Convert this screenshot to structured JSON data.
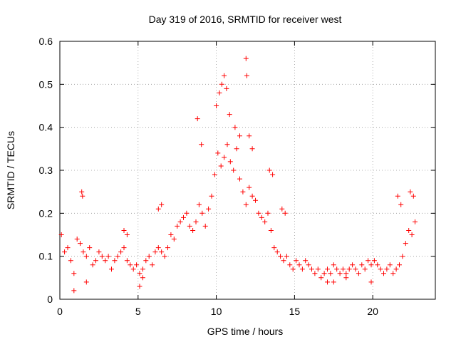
{
  "chart_data": {
    "type": "scatter",
    "title": "Day 319 of 2016, SRMTID for receiver west",
    "xlabel": "GPS time / hours",
    "ylabel": "SRMTID / TECUs",
    "xlim": [
      0,
      24
    ],
    "ylim": [
      0,
      0.6
    ],
    "xticks": [
      "0",
      "5",
      "10",
      "15",
      "20"
    ],
    "yticks": [
      "0",
      "0.1",
      "0.2",
      "0.3",
      "0.4",
      "0.5",
      "0.6"
    ],
    "grid": true,
    "marker": "+",
    "color": "#ff0000",
    "series": [
      {
        "name": "SRMTID",
        "x": [
          0.1,
          0.3,
          0.5,
          0.7,
          0.9,
          1.1,
          1.3,
          1.5,
          1.7,
          1.9,
          2.1,
          2.3,
          2.5,
          2.7,
          2.9,
          3.1,
          3.3,
          3.5,
          3.7,
          3.9,
          4.1,
          4.3,
          4.5,
          4.7,
          4.9,
          5.1,
          5.3,
          5.5,
          5.7,
          5.9,
          6.1,
          6.3,
          6.5,
          6.7,
          6.9,
          7.1,
          7.3,
          7.5,
          7.7,
          7.9,
          8.1,
          8.3,
          8.5,
          8.7,
          8.9,
          9.1,
          9.3,
          9.5,
          9.7,
          9.9,
          10.1,
          10.3,
          10.5,
          10.7,
          10.9,
          11.1,
          11.3,
          11.5,
          11.7,
          11.9,
          12.1,
          12.3,
          12.5,
          12.7,
          12.9,
          13.1,
          13.3,
          13.5,
          13.7,
          13.9,
          14.1,
          14.3,
          14.5,
          14.7,
          14.9,
          15.1,
          15.3,
          15.5,
          15.7,
          15.9,
          16.1,
          16.3,
          16.5,
          16.7,
          16.9,
          17.1,
          17.3,
          17.5,
          17.7,
          17.9,
          18.1,
          18.3,
          18.5,
          18.7,
          18.9,
          19.1,
          19.3,
          19.5,
          19.7,
          19.9,
          20.1,
          20.3,
          20.5,
          20.7,
          20.9,
          21.1,
          21.3,
          21.5,
          21.7,
          21.9,
          22.1,
          22.3,
          22.5,
          22.7,
          1.4,
          1.45,
          4.1,
          4.3,
          6.3,
          6.5,
          8.8,
          9.05,
          10.0,
          10.2,
          10.35,
          10.5,
          10.65,
          10.85,
          11.2,
          11.5,
          11.9,
          11.95,
          12.1,
          12.3,
          13.4,
          13.6,
          14.2,
          14.4,
          21.6,
          21.8,
          22.4,
          22.6,
          0.9,
          1.7,
          5.1,
          5.3,
          17.1,
          17.5,
          18.3,
          19.9
        ],
        "y": [
          0.15,
          0.11,
          0.12,
          0.09,
          0.06,
          0.14,
          0.13,
          0.11,
          0.1,
          0.12,
          0.08,
          0.09,
          0.11,
          0.1,
          0.09,
          0.1,
          0.07,
          0.09,
          0.1,
          0.11,
          0.12,
          0.09,
          0.08,
          0.07,
          0.08,
          0.06,
          0.07,
          0.09,
          0.1,
          0.08,
          0.11,
          0.12,
          0.11,
          0.1,
          0.12,
          0.15,
          0.14,
          0.17,
          0.18,
          0.19,
          0.2,
          0.17,
          0.16,
          0.18,
          0.22,
          0.2,
          0.17,
          0.21,
          0.24,
          0.29,
          0.34,
          0.31,
          0.33,
          0.36,
          0.32,
          0.3,
          0.35,
          0.28,
          0.25,
          0.22,
          0.26,
          0.24,
          0.23,
          0.2,
          0.19,
          0.18,
          0.2,
          0.16,
          0.12,
          0.11,
          0.1,
          0.09,
          0.1,
          0.08,
          0.07,
          0.09,
          0.08,
          0.07,
          0.09,
          0.08,
          0.07,
          0.06,
          0.07,
          0.05,
          0.06,
          0.07,
          0.06,
          0.08,
          0.07,
          0.06,
          0.07,
          0.06,
          0.07,
          0.08,
          0.07,
          0.06,
          0.08,
          0.07,
          0.09,
          0.08,
          0.09,
          0.08,
          0.07,
          0.06,
          0.07,
          0.08,
          0.06,
          0.07,
          0.08,
          0.1,
          0.13,
          0.16,
          0.15,
          0.18,
          0.25,
          0.24,
          0.16,
          0.15,
          0.21,
          0.22,
          0.42,
          0.36,
          0.45,
          0.48,
          0.5,
          0.52,
          0.49,
          0.43,
          0.4,
          0.38,
          0.56,
          0.52,
          0.38,
          0.35,
          0.3,
          0.29,
          0.21,
          0.2,
          0.24,
          0.22,
          0.25,
          0.24,
          0.02,
          0.04,
          0.03,
          0.05,
          0.04,
          0.04,
          0.05,
          0.04
        ]
      }
    ]
  }
}
